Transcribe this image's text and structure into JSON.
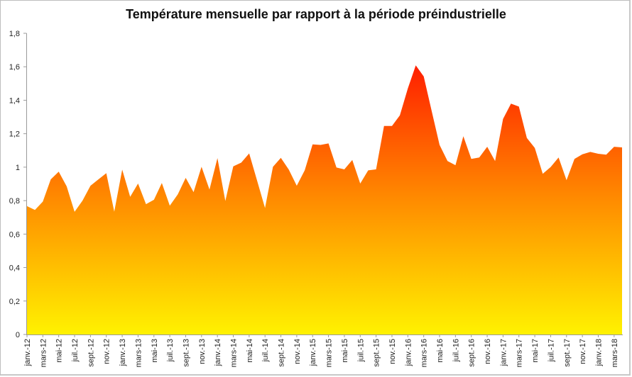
{
  "chart_data": {
    "type": "area",
    "title": "Température mensuelle par rapport à la période préindustrielle",
    "xlabel": "",
    "ylabel": "",
    "ylim": [
      0,
      1.8
    ],
    "yticks": [
      "0",
      "0,2",
      "0,4",
      "0,6",
      "0,8",
      "1",
      "1,2",
      "1,4",
      "1,6",
      "1,8"
    ],
    "x_start": "janv.-12",
    "x_interval": "monthly",
    "tick_labels": [
      "janv.-12",
      "mars-12",
      "mai-12",
      "juil.-12",
      "sept.-12",
      "nov.-12",
      "janv.-13",
      "mars-13",
      "mai-13",
      "juil.-13",
      "sept.-13",
      "nov.-13",
      "janv.-14",
      "mars-14",
      "mai-14",
      "juil.-14",
      "sept.-14",
      "nov.-14",
      "janv.-15",
      "mars-15",
      "mai-15",
      "juil.-15",
      "sept.-15",
      "nov.-15",
      "janv.-16",
      "mars-16",
      "mai-16",
      "juil.-16",
      "sept.-16",
      "nov.-16",
      "janv.-17",
      "mars-17",
      "mai-17",
      "juil.-17",
      "sept.-17",
      "nov.-17",
      "janv.-18",
      "mars-18"
    ],
    "values": [
      0.767,
      0.744,
      0.794,
      0.927,
      0.973,
      0.885,
      0.733,
      0.8,
      0.889,
      0.927,
      0.964,
      0.734,
      0.985,
      0.823,
      0.902,
      0.779,
      0.805,
      0.905,
      0.77,
      0.837,
      0.936,
      0.851,
      1.002,
      0.866,
      1.054,
      0.798,
      1.005,
      1.027,
      1.082,
      0.92,
      0.756,
      1.002,
      1.056,
      0.985,
      0.889,
      0.981,
      1.136,
      1.133,
      1.142,
      0.998,
      0.987,
      1.043,
      0.902,
      0.981,
      0.987,
      1.246,
      1.246,
      1.31,
      1.47,
      1.608,
      1.542,
      1.337,
      1.133,
      1.037,
      1.012,
      1.185,
      1.049,
      1.058,
      1.122,
      1.037,
      1.288,
      1.38,
      1.362,
      1.175,
      1.115,
      0.96,
      1.001,
      1.058,
      0.922,
      1.049,
      1.077,
      1.091,
      1.08,
      1.075,
      1.122,
      1.118
    ],
    "grid": false,
    "legend": "none",
    "colors": {
      "low": "#fff200",
      "mid": "#ff8c00",
      "high": "#ff2000"
    }
  }
}
